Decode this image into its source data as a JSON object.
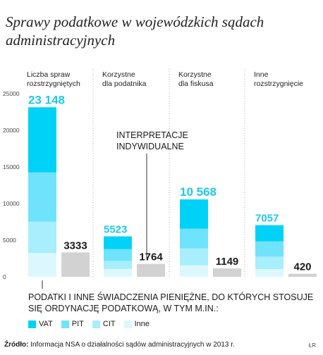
{
  "title": "Sprawy podatkowe w wojewódzkich sądach administracyjnych",
  "colors": {
    "VAT": "#00d2f7",
    "PIT": "#6fe3fb",
    "CIT": "#a8eefc",
    "Inne": "#dcf8fe",
    "individual": "#d2d2d2",
    "total_label": "#1ec8ee"
  },
  "chart_data": {
    "type": "bar",
    "categories": [
      "Liczba spraw rozstrzygniętych",
      "Korzystne dla podatnika",
      "Korzystne dla fiskusa",
      "Inne rozstrzygnięcie"
    ],
    "stack_series": [
      {
        "name": "VAT",
        "values": [
          8900,
          1750,
          4000,
          2200
        ]
      },
      {
        "name": "PIT",
        "values": [
          6700,
          1600,
          2700,
          2100
        ]
      },
      {
        "name": "CIT",
        "values": [
          4300,
          1100,
          2300,
          1700
        ]
      },
      {
        "name": "Inne",
        "values": [
          3248,
          1073,
          1568,
          1057
        ]
      }
    ],
    "totals": [
      23148,
      5523,
      10568,
      7057
    ],
    "totals_text": [
      "23 148",
      "5523",
      "10 568",
      "7057"
    ],
    "interpretacje_indywidualne": [
      3333,
      1764,
      1149,
      420
    ],
    "interpretacje_text": [
      "3333",
      "1764",
      "1149",
      "420"
    ],
    "yticks": [
      0,
      5000,
      10000,
      15000,
      20000,
      25000
    ],
    "ylim": [
      0,
      25000
    ],
    "annotation": "INTERPRETACJE INDYWIDUALNE",
    "gridlines": "vertical dotted separators"
  },
  "legend": {
    "title": "PODATKI I INNE ŚWIADCZENIA PIENIĘŻNE, DO KTÓRYCH STOSUJE SIĘ ORDYNACJĘ PODATKOWĄ, W TYM M.IN.:",
    "items": [
      "VAT",
      "PIT",
      "CIT",
      "Inne"
    ]
  },
  "source": {
    "label": "Źródło:",
    "text": "Informacja NSA o działalności sądów administracyjnych w 2013 r."
  },
  "credit": "ŁR"
}
